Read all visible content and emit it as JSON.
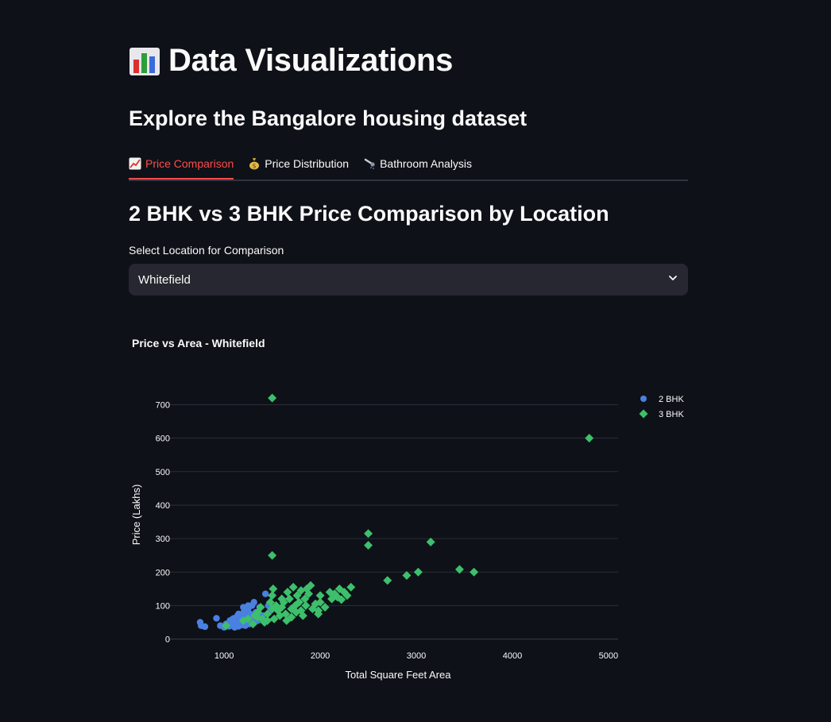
{
  "header": {
    "title": "Data Visualizations",
    "title_icon": "bar-chart-icon",
    "subtitle": "Explore the Bangalore housing dataset"
  },
  "tabs": [
    {
      "label": "Price Comparison",
      "icon": "chart-increasing-icon",
      "active": true
    },
    {
      "label": "Price Distribution",
      "icon": "money-bag-icon",
      "active": false
    },
    {
      "label": "Bathroom Analysis",
      "icon": "shower-icon",
      "active": false
    }
  ],
  "section": {
    "title": "2 BHK vs 3 BHK Price Comparison by Location"
  },
  "location_select": {
    "label": "Select Location for Comparison",
    "value": "Whitefield"
  },
  "colors": {
    "background": "#0e1117",
    "accent": "#ff4b4b",
    "series_2bhk": "#4a80e0",
    "series_3bhk": "#3dbf6b"
  },
  "chart_data": {
    "type": "scatter",
    "title": "Price vs Area - Whitefield",
    "xlabel": "Total Square Feet Area",
    "ylabel": "Price (Lakhs)",
    "xlim": [
      420,
      5100
    ],
    "ylim": [
      -20,
      770
    ],
    "xticks": [
      1000,
      2000,
      3000,
      4000,
      5000
    ],
    "yticks": [
      0,
      100,
      200,
      300,
      400,
      500,
      600,
      700
    ],
    "grid": true,
    "legend_position": "top-right",
    "series": [
      {
        "name": "2 BHK",
        "marker": "circle",
        "color": "#4a80e0",
        "points": [
          [
            750,
            50
          ],
          [
            760,
            40
          ],
          [
            800,
            37
          ],
          [
            920,
            62
          ],
          [
            960,
            40
          ],
          [
            1000,
            35
          ],
          [
            1020,
            45
          ],
          [
            1050,
            38
          ],
          [
            1060,
            55
          ],
          [
            1080,
            40
          ],
          [
            1100,
            50
          ],
          [
            1100,
            62
          ],
          [
            1110,
            35
          ],
          [
            1120,
            45
          ],
          [
            1130,
            58
          ],
          [
            1140,
            70
          ],
          [
            1150,
            38
          ],
          [
            1160,
            52
          ],
          [
            1170,
            65
          ],
          [
            1180,
            42
          ],
          [
            1190,
            75
          ],
          [
            1200,
            48
          ],
          [
            1200,
            60
          ],
          [
            1210,
            85
          ],
          [
            1220,
            40
          ],
          [
            1230,
            55
          ],
          [
            1240,
            68
          ],
          [
            1250,
            90
          ],
          [
            1260,
            45
          ],
          [
            1270,
            75
          ],
          [
            1280,
            60
          ],
          [
            1290,
            100
          ],
          [
            1300,
            50
          ],
          [
            1310,
            110
          ],
          [
            1320,
            65
          ],
          [
            1330,
            80
          ],
          [
            1350,
            55
          ],
          [
            1370,
            95
          ],
          [
            1400,
            70
          ],
          [
            1430,
            135
          ],
          [
            1460,
            100
          ],
          [
            1480,
            85
          ],
          [
            1200,
            95
          ],
          [
            1250,
            100
          ],
          [
            1150,
            75
          ],
          [
            1090,
            60
          ]
        ]
      },
      {
        "name": "3 BHK",
        "marker": "diamond",
        "color": "#3dbf6b",
        "points": [
          [
            1500,
            720
          ],
          [
            4800,
            600
          ],
          [
            1500,
            250
          ],
          [
            2500,
            315
          ],
          [
            2500,
            280
          ],
          [
            3150,
            290
          ],
          [
            3450,
            208
          ],
          [
            3600,
            200
          ],
          [
            2700,
            175
          ],
          [
            2900,
            190
          ],
          [
            3020,
            200
          ],
          [
            1020,
            40
          ],
          [
            1200,
            55
          ],
          [
            1250,
            60
          ],
          [
            1300,
            45
          ],
          [
            1320,
            70
          ],
          [
            1350,
            80
          ],
          [
            1380,
            95
          ],
          [
            1400,
            60
          ],
          [
            1420,
            50
          ],
          [
            1450,
            75
          ],
          [
            1480,
            110
          ],
          [
            1500,
            130
          ],
          [
            1500,
            90
          ],
          [
            1510,
            150
          ],
          [
            1520,
            60
          ],
          [
            1540,
            100
          ],
          [
            1560,
            85
          ],
          [
            1580,
            70
          ],
          [
            1600,
            95
          ],
          [
            1600,
            120
          ],
          [
            1620,
            110
          ],
          [
            1640,
            75
          ],
          [
            1650,
            55
          ],
          [
            1660,
            140
          ],
          [
            1680,
            120
          ],
          [
            1700,
            90
          ],
          [
            1700,
            65
          ],
          [
            1720,
            155
          ],
          [
            1740,
            100
          ],
          [
            1750,
            80
          ],
          [
            1760,
            130
          ],
          [
            1780,
            110
          ],
          [
            1800,
            145
          ],
          [
            1800,
            85
          ],
          [
            1820,
            70
          ],
          [
            1840,
            120
          ],
          [
            1850,
            100
          ],
          [
            1860,
            150
          ],
          [
            1880,
            135
          ],
          [
            1900,
            160
          ],
          [
            1920,
            90
          ],
          [
            1950,
            105
          ],
          [
            1980,
            75
          ],
          [
            2000,
            130
          ],
          [
            2000,
            110
          ],
          [
            2050,
            95
          ],
          [
            2100,
            140
          ],
          [
            2120,
            120
          ],
          [
            2150,
            135
          ],
          [
            2180,
            125
          ],
          [
            2200,
            150
          ],
          [
            2220,
            118
          ],
          [
            2250,
            140
          ],
          [
            2280,
            130
          ],
          [
            2320,
            155
          ],
          [
            1980,
            85
          ],
          [
            1350,
            65
          ],
          [
            1450,
            55
          ]
        ]
      }
    ]
  }
}
